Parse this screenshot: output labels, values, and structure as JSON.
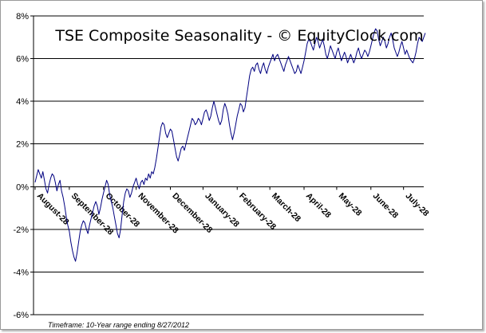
{
  "chart_data": {
    "type": "line",
    "title": "TSE Composite Seasonality - © EquityClock.com",
    "footnote": "Timeframe: 10-Year range ending 8/27/2012",
    "xlabel": "",
    "ylabel": "",
    "ylim": [
      -6,
      8
    ],
    "y_ticks": [
      -6,
      -4,
      -2,
      0,
      2,
      4,
      6,
      8
    ],
    "y_tick_labels": [
      "-6%",
      "-4%",
      "-2%",
      "0%",
      "2%",
      "4%",
      "6%",
      "8%"
    ],
    "x_tick_labels": [
      "August-28",
      "September-28",
      "October-28",
      "November-28",
      "December-28",
      "January-28",
      "February-28",
      "March-28",
      "April-28",
      "May-28",
      "June-28",
      "July-28"
    ],
    "grid": true,
    "legend": "none",
    "line_color": "#000080",
    "series": [
      {
        "x_tick_positions": [
          0,
          22,
          44,
          65,
          87,
          108,
          130,
          151,
          173,
          194,
          216,
          237
        ],
        "x_max": 250,
        "values": [
          0.2,
          0.5,
          0.8,
          0.6,
          0.4,
          0.7,
          0.3,
          -0.1,
          -0.3,
          0.1,
          0.4,
          0.6,
          0.5,
          0.2,
          -0.2,
          0.1,
          0.3,
          -0.2,
          -0.5,
          -0.9,
          -1.4,
          -1.8,
          -2.1,
          -2.6,
          -3.0,
          -3.3,
          -3.5,
          -3.1,
          -2.6,
          -2.1,
          -1.8,
          -1.6,
          -1.7,
          -2.0,
          -2.2,
          -1.8,
          -1.5,
          -1.2,
          -0.9,
          -0.7,
          -0.9,
          -1.3,
          -1.0,
          -0.6,
          -0.3,
          0.0,
          0.3,
          0.1,
          -0.4,
          -0.7,
          -1.0,
          -1.4,
          -1.8,
          -2.2,
          -2.4,
          -2.0,
          -1.3,
          -0.7,
          -0.3,
          -0.1,
          -0.2,
          -0.5,
          -0.3,
          0.0,
          0.2,
          0.4,
          0.1,
          -0.1,
          0.2,
          0.3,
          0.1,
          0.4,
          0.3,
          0.6,
          0.4,
          0.7,
          0.6,
          0.9,
          1.3,
          1.8,
          2.3,
          2.8,
          3.0,
          2.9,
          2.5,
          2.3,
          2.5,
          2.7,
          2.6,
          2.2,
          1.8,
          1.4,
          1.2,
          1.5,
          1.8,
          1.9,
          1.7,
          2.0,
          2.3,
          2.6,
          2.9,
          3.2,
          3.1,
          2.9,
          3.0,
          3.2,
          3.1,
          2.9,
          3.2,
          3.5,
          3.6,
          3.4,
          3.1,
          3.3,
          3.7,
          4.0,
          3.7,
          3.4,
          3.1,
          2.9,
          3.1,
          3.6,
          3.9,
          3.7,
          3.4,
          2.9,
          2.5,
          2.2,
          2.5,
          2.9,
          3.3,
          3.6,
          3.9,
          3.8,
          3.5,
          3.7,
          4.2,
          4.7,
          5.2,
          5.5,
          5.6,
          5.4,
          5.7,
          5.8,
          5.5,
          5.3,
          5.6,
          5.8,
          5.5,
          5.3,
          5.6,
          5.8,
          6.0,
          6.2,
          5.9,
          6.1,
          6.2,
          6.0,
          5.8,
          5.6,
          5.4,
          5.7,
          5.9,
          6.1,
          5.9,
          5.7,
          5.5,
          5.3,
          5.4,
          5.7,
          5.5,
          5.3,
          5.6,
          5.9,
          6.3,
          6.7,
          6.9,
          6.8,
          6.6,
          6.4,
          6.7,
          7.0,
          6.8,
          6.5,
          6.7,
          6.9,
          6.6,
          6.2,
          6.0,
          6.3,
          6.6,
          6.4,
          6.2,
          6.0,
          6.3,
          6.5,
          6.2,
          5.9,
          6.1,
          6.3,
          6.1,
          5.8,
          6.0,
          6.2,
          6.0,
          5.8,
          6.0,
          6.3,
          6.5,
          6.2,
          6.0,
          6.2,
          6.4,
          6.3,
          6.1,
          6.3,
          6.6,
          6.9,
          7.2,
          7.4,
          7.3,
          6.9,
          6.6,
          6.8,
          7.0,
          6.8,
          6.5,
          6.7,
          7.0,
          7.2,
          6.9,
          6.5,
          6.3,
          6.1,
          6.3,
          6.6,
          6.8,
          6.5,
          6.2,
          6.4,
          6.2,
          6.0,
          5.9,
          5.8,
          6.0,
          6.3,
          6.7,
          7.0,
          6.9,
          6.8,
          7.0,
          7.2
        ]
      }
    ]
  }
}
